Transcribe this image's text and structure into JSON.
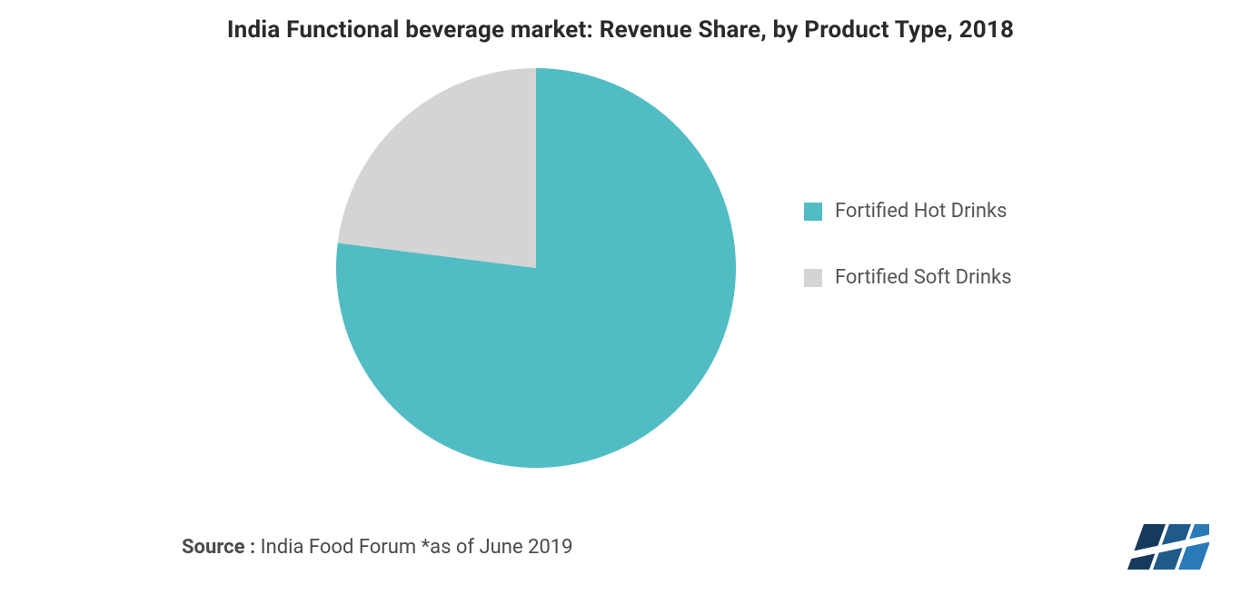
{
  "title": "India Functional beverage market: Revenue Share, by Product Type, 2018",
  "source": {
    "label": "Source :",
    "text": " India Food Forum *as of June 2019"
  },
  "chart": {
    "type": "pie",
    "background_color": "#ffffff",
    "title_fontsize": 26,
    "title_color": "#2a2a2a",
    "legend_fontsize": 22,
    "legend_color": "#555555",
    "source_fontsize": 22,
    "source_color": "#4a4a4a",
    "slices": [
      {
        "label": "Fortified Hot Drinks",
        "value": 77,
        "color": "#52bcc5"
      },
      {
        "label": "Fortified Soft Drinks",
        "value": 23,
        "color": "#d4d4d4"
      }
    ],
    "start_angle_deg": 0,
    "pie_radius": 220,
    "legend_swatch_size": 20
  },
  "logo": {
    "bars": [
      {
        "color": "#153a5b"
      },
      {
        "color": "#1f5a8a"
      },
      {
        "color": "#2a7ab8"
      }
    ],
    "overlay_color": "#ffffff"
  }
}
